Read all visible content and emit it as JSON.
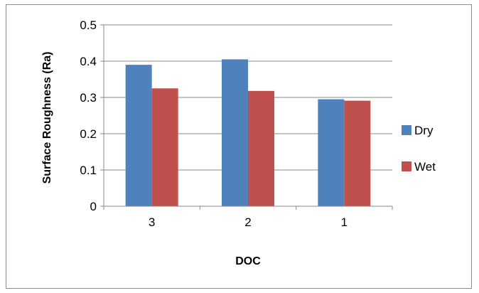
{
  "chart_data": {
    "type": "bar",
    "categories": [
      "3",
      "2",
      "1"
    ],
    "series": [
      {
        "name": "Dry",
        "values": [
          0.39,
          0.405,
          0.295
        ],
        "color": "#4f81bd"
      },
      {
        "name": "Wet",
        "values": [
          0.325,
          0.318,
          0.291
        ],
        "color": "#c0504d"
      }
    ],
    "xlabel": "DOC",
    "ylabel": "Surface Roughness (Ra)",
    "ylim": [
      0,
      0.5
    ],
    "yticks": [
      "0",
      "0.1",
      "0.2",
      "0.3",
      "0.4",
      "0.5"
    ],
    "grid": true,
    "legend_position": "right"
  }
}
